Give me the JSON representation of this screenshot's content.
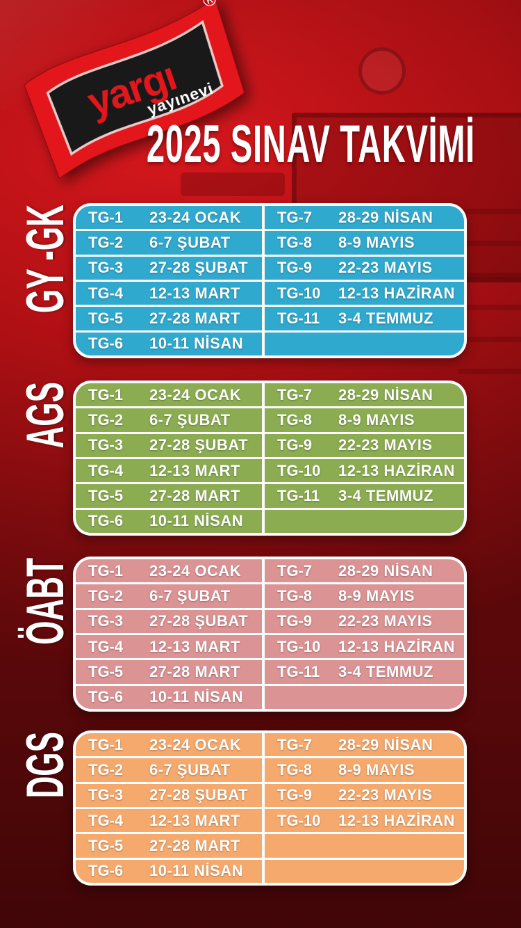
{
  "header": {
    "logo": {
      "name": "yargı",
      "subtitle": "yayınevi",
      "registered_mark": "®"
    },
    "title": "2025 SINAV TAKVİMİ"
  },
  "colors": {
    "background_top": "#b81116",
    "background_bottom": "#560608",
    "table_frame": "#ffffff",
    "logo_red": "#e3161c",
    "logo_black": "#191919",
    "gygk": "#2FA9CE",
    "ags": "#8BAC51",
    "oabt": "#DB9394",
    "dgs": "#F5A96D"
  },
  "sections": [
    {
      "label": "GY -GK",
      "color": "#2FA9CE",
      "left_rows": [
        {
          "tg": "TG-1",
          "date": "23-24 OCAK"
        },
        {
          "tg": "TG-2",
          "date": "6-7 ŞUBAT"
        },
        {
          "tg": "TG-3",
          "date": "27-28 ŞUBAT"
        },
        {
          "tg": "TG-4",
          "date": "12-13 MART"
        },
        {
          "tg": "TG-5",
          "date": "27-28 MART"
        },
        {
          "tg": "TG-6",
          "date": "10-11 NİSAN"
        }
      ],
      "right_rows": [
        {
          "tg": "TG-7",
          "date": "28-29 NİSAN"
        },
        {
          "tg": "TG-8",
          "date": "8-9 MAYIS"
        },
        {
          "tg": "TG-9",
          "date": "22-23 MAYIS"
        },
        {
          "tg": "TG-10",
          "date": "12-13 HAZİRAN"
        },
        {
          "tg": "TG-11",
          "date": "3-4 TEMMUZ"
        },
        {
          "tg": "",
          "date": ""
        }
      ]
    },
    {
      "label": "AGS",
      "color": "#8BAC51",
      "left_rows": [
        {
          "tg": "TG-1",
          "date": "23-24 OCAK"
        },
        {
          "tg": "TG-2",
          "date": "6-7 ŞUBAT"
        },
        {
          "tg": "TG-3",
          "date": "27-28 ŞUBAT"
        },
        {
          "tg": "TG-4",
          "date": "12-13 MART"
        },
        {
          "tg": "TG-5",
          "date": "27-28 MART"
        },
        {
          "tg": "TG-6",
          "date": "10-11 NİSAN"
        }
      ],
      "right_rows": [
        {
          "tg": "TG-7",
          "date": "28-29 NİSAN"
        },
        {
          "tg": "TG-8",
          "date": "8-9 MAYIS"
        },
        {
          "tg": "TG-9",
          "date": "22-23 MAYIS"
        },
        {
          "tg": "TG-10",
          "date": "12-13 HAZİRAN"
        },
        {
          "tg": "TG-11",
          "date": "3-4 TEMMUZ"
        },
        {
          "tg": "",
          "date": ""
        }
      ]
    },
    {
      "label": "ÖABT",
      "color": "#DB9394",
      "left_rows": [
        {
          "tg": "TG-1",
          "date": "23-24 OCAK"
        },
        {
          "tg": "TG-2",
          "date": "6-7 ŞUBAT"
        },
        {
          "tg": "TG-3",
          "date": "27-28 ŞUBAT"
        },
        {
          "tg": "TG-4",
          "date": "12-13 MART"
        },
        {
          "tg": "TG-5",
          "date": "27-28 MART"
        },
        {
          "tg": "TG-6",
          "date": "10-11 NİSAN"
        }
      ],
      "right_rows": [
        {
          "tg": "TG-7",
          "date": "28-29 NİSAN"
        },
        {
          "tg": "TG-8",
          "date": "8-9 MAYIS"
        },
        {
          "tg": "TG-9",
          "date": "22-23 MAYIS"
        },
        {
          "tg": "TG-10",
          "date": "12-13 HAZİRAN"
        },
        {
          "tg": "TG-11",
          "date": "3-4 TEMMUZ"
        },
        {
          "tg": "",
          "date": ""
        }
      ]
    },
    {
      "label": "DGS",
      "color": "#F5A96D",
      "left_rows": [
        {
          "tg": "TG-1",
          "date": "23-24 OCAK"
        },
        {
          "tg": "TG-2",
          "date": "6-7 ŞUBAT"
        },
        {
          "tg": "TG-3",
          "date": "27-28 ŞUBAT"
        },
        {
          "tg": "TG-4",
          "date": "12-13 MART"
        },
        {
          "tg": "TG-5",
          "date": "27-28 MART"
        },
        {
          "tg": "TG-6",
          "date": "10-11 NİSAN"
        }
      ],
      "right_rows": [
        {
          "tg": "TG-7",
          "date": "28-29 NİSAN"
        },
        {
          "tg": "TG-8",
          "date": "8-9 MAYIS"
        },
        {
          "tg": "TG-9",
          "date": "22-23 MAYIS"
        },
        {
          "tg": "TG-10",
          "date": "12-13 HAZİRAN"
        },
        {
          "tg": "",
          "date": ""
        },
        {
          "tg": "",
          "date": ""
        }
      ]
    }
  ],
  "layout_tops": [
    "292",
    "547",
    "800",
    "1050"
  ]
}
